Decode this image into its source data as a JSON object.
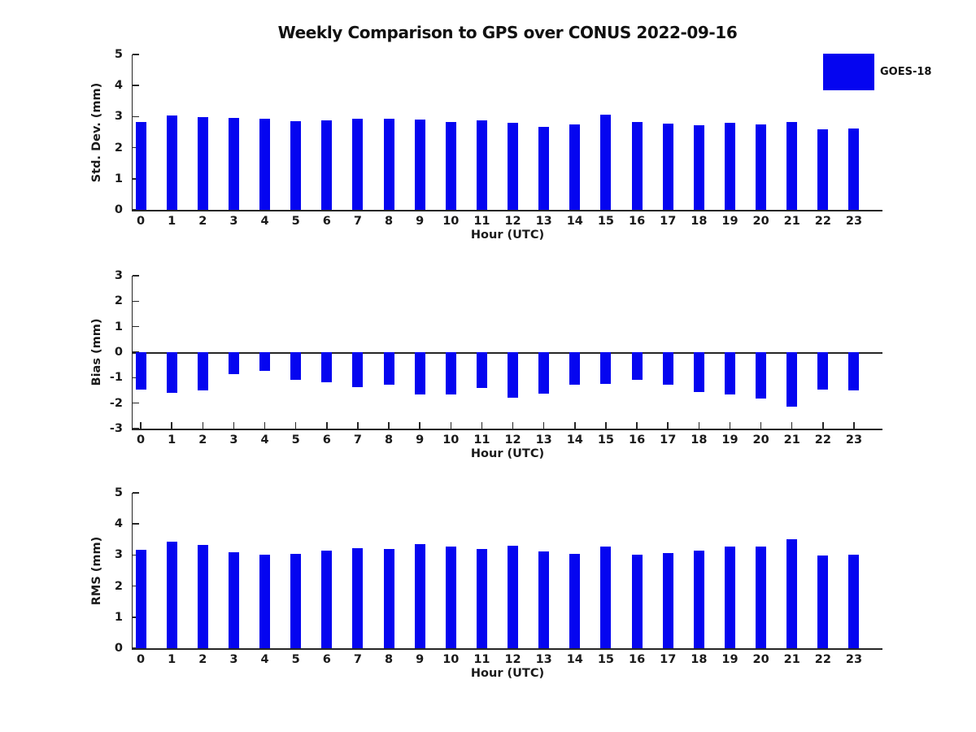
{
  "title": "Weekly Comparison to GPS over CONUS 2022-09-16",
  "legend": {
    "label": "GOES-18"
  },
  "colors": {
    "bar": "#0505f0",
    "axis": "#262626",
    "text": "#1a1a1a"
  },
  "chart_data": [
    {
      "type": "bar",
      "title": "Weekly Comparison to GPS over CONUS 2022-09-16",
      "ylabel": "Std. Dev. (mm)",
      "xlabel": "Hour (UTC)",
      "ylim": [
        0,
        5
      ],
      "yticks": [
        0,
        1,
        2,
        3,
        4,
        5
      ],
      "legend_entries": [
        "GOES-18"
      ],
      "legend_position": "upper right outside",
      "grid": false,
      "categories": [
        "0",
        "1",
        "2",
        "3",
        "4",
        "5",
        "6",
        "7",
        "8",
        "9",
        "10",
        "11",
        "12",
        "13",
        "14",
        "15",
        "16",
        "17",
        "18",
        "19",
        "20",
        "21",
        "22",
        "23"
      ],
      "values": [
        2.82,
        3.03,
        2.98,
        2.97,
        2.92,
        2.85,
        2.89,
        2.92,
        2.94,
        2.91,
        2.83,
        2.87,
        2.8,
        2.68,
        2.76,
        3.05,
        2.84,
        2.77,
        2.71,
        2.81,
        2.76,
        2.84,
        2.59,
        2.62
      ]
    },
    {
      "type": "bar",
      "ylabel": "Bias (mm)",
      "xlabel": "Hour (UTC)",
      "ylim": [
        -3,
        3
      ],
      "yticks": [
        3,
        2,
        1,
        0,
        -1,
        -2,
        -3
      ],
      "grid": false,
      "zero_line": true,
      "categories": [
        "0",
        "1",
        "2",
        "3",
        "4",
        "5",
        "6",
        "7",
        "8",
        "9",
        "10",
        "11",
        "12",
        "13",
        "14",
        "15",
        "16",
        "17",
        "18",
        "19",
        "20",
        "21",
        "22",
        "23"
      ],
      "values": [
        -1.48,
        -1.6,
        -1.5,
        -0.85,
        -0.74,
        -1.1,
        -1.18,
        -1.37,
        -1.27,
        -1.67,
        -1.65,
        -1.4,
        -1.8,
        -1.63,
        -1.27,
        -1.23,
        -1.08,
        -1.27,
        -1.55,
        -1.66,
        -1.81,
        -2.13,
        -1.46,
        -1.49
      ]
    },
    {
      "type": "bar",
      "ylabel": "RMS (mm)",
      "xlabel": "Hour (UTC)",
      "ylim": [
        0,
        5
      ],
      "yticks": [
        0,
        1,
        2,
        3,
        4,
        5
      ],
      "grid": false,
      "categories": [
        "0",
        "1",
        "2",
        "3",
        "4",
        "5",
        "6",
        "7",
        "8",
        "9",
        "10",
        "11",
        "12",
        "13",
        "14",
        "15",
        "16",
        "17",
        "18",
        "19",
        "20",
        "21",
        "22",
        "23"
      ],
      "values": [
        3.18,
        3.42,
        3.32,
        3.08,
        3.0,
        3.04,
        3.15,
        3.22,
        3.2,
        3.35,
        3.27,
        3.2,
        3.31,
        3.12,
        3.04,
        3.28,
        3.0,
        3.07,
        3.14,
        3.27,
        3.27,
        3.52,
        2.98,
        3.0
      ]
    }
  ]
}
